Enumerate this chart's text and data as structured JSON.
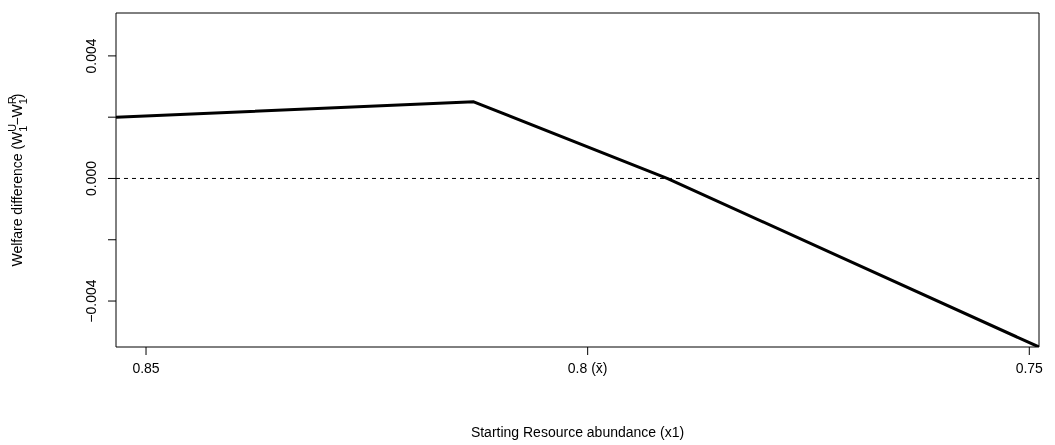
{
  "chart_data": {
    "type": "line",
    "xlabel": "Starting Resource abundance (x1)",
    "ylabel": "Welfare difference (W$^{U}$$_{1}$−W$^{R}$$_{1}$)",
    "x": [
      0.8534,
      0.8129,
      0.791,
      0.7489
    ],
    "series": [
      {
        "color": "#000000",
        "values": [
          0.002,
          0.0025,
          0,
          -0.0055
        ]
      }
    ],
    "xlim": [
      0.8534,
      0.7489
    ],
    "xticks": [
      0.85,
      {
        "value": 0.8,
        "label": "0.8 (x̄)"
      },
      0.75
    ],
    "ylim": [
      -0.0055,
      0.0054
    ],
    "yticks": [
      {
        "value": -0.004,
        "label": "−0.004"
      },
      {
        "value": -0.002,
        "label": null
      },
      {
        "value": 0,
        "label": "0.000"
      },
      {
        "value": 0.002,
        "label": null
      },
      {
        "value": 0.004,
        "label": "0.004"
      }
    ],
    "ref_lines": [
      {
        "axis": "y",
        "value": 0,
        "line_style": "dashed",
        "color": "#000000"
      }
    ],
    "grid": false,
    "legend": false,
    "marker": "none",
    "line_style": "solid"
  }
}
